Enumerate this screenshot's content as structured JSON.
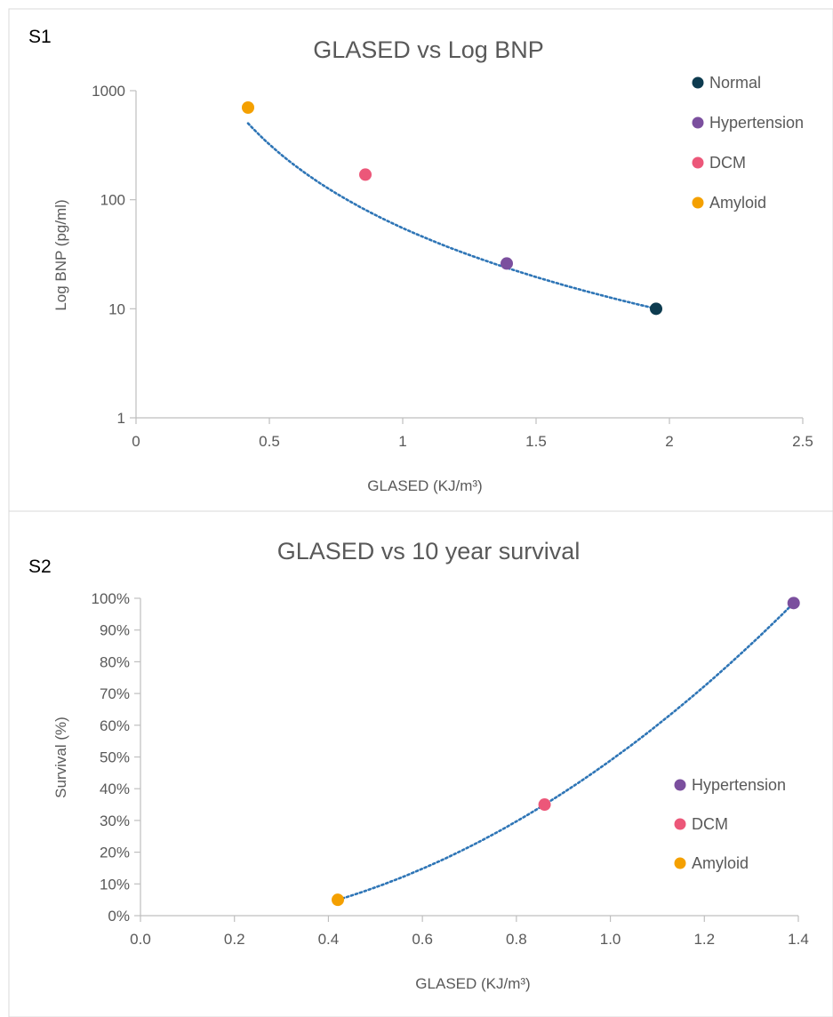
{
  "chart_data": [
    {
      "panel_label": "S1",
      "type": "scatter",
      "title": "GLASED vs Log BNP",
      "xlabel": "GLASED (KJ/m³)",
      "ylabel": "Log BNP (pg/ml)",
      "xlim": [
        0,
        2.5
      ],
      "ylim": [
        1,
        1000
      ],
      "y_scale": "log",
      "x_ticks": [
        "0",
        "0.5",
        "1",
        "1.5",
        "2",
        "2.5"
      ],
      "y_ticks": [
        "1",
        "10",
        "100",
        "1000"
      ],
      "grid": false,
      "legend_position": "top-right",
      "series": [
        {
          "name": "Normal",
          "color": "#0d3b4f",
          "points": [
            {
              "x": 1.95,
              "y": 10
            }
          ]
        },
        {
          "name": "Hypertension",
          "color": "#7b4f9e",
          "points": [
            {
              "x": 1.39,
              "y": 26
            }
          ]
        },
        {
          "name": "DCM",
          "color": "#ec5779",
          "points": [
            {
              "x": 0.86,
              "y": 170
            }
          ]
        },
        {
          "name": "Amyloid",
          "color": "#f4a000",
          "points": [
            {
              "x": 0.42,
              "y": 700
            }
          ]
        }
      ],
      "trendline": {
        "style": "dotted",
        "color": "#2e75b6",
        "type": "power",
        "a": 55,
        "b": -2.55,
        "x_range": [
          0.42,
          1.95
        ]
      }
    },
    {
      "panel_label": "S2",
      "type": "scatter",
      "title": "GLASED vs 10 year survival",
      "xlabel": "GLASED (KJ/m³)",
      "ylabel": "Survival (%)",
      "xlim": [
        0,
        1.4
      ],
      "ylim": [
        0,
        100
      ],
      "x_ticks": [
        "0.0",
        "0.2",
        "0.4",
        "0.6",
        "0.8",
        "1.0",
        "1.2",
        "1.4"
      ],
      "y_ticks": [
        "0%",
        "10%",
        "20%",
        "30%",
        "40%",
        "50%",
        "60%",
        "70%",
        "80%",
        "90%",
        "100%"
      ],
      "grid": false,
      "legend_position": "right",
      "series": [
        {
          "name": "Hypertension",
          "color": "#7b4f9e",
          "points": [
            {
              "x": 1.39,
              "y": 98.5
            }
          ]
        },
        {
          "name": "DCM",
          "color": "#ec5779",
          "points": [
            {
              "x": 0.86,
              "y": 35
            }
          ]
        },
        {
          "name": "Amyloid",
          "color": "#f4a000",
          "points": [
            {
              "x": 0.42,
              "y": 5
            }
          ]
        }
      ],
      "trendline": {
        "style": "dotted",
        "color": "#2e75b6",
        "type": "polynomial",
        "points": [
          [
            0.42,
            5
          ],
          [
            0.86,
            35
          ],
          [
            1.39,
            98.5
          ]
        ]
      }
    }
  ]
}
